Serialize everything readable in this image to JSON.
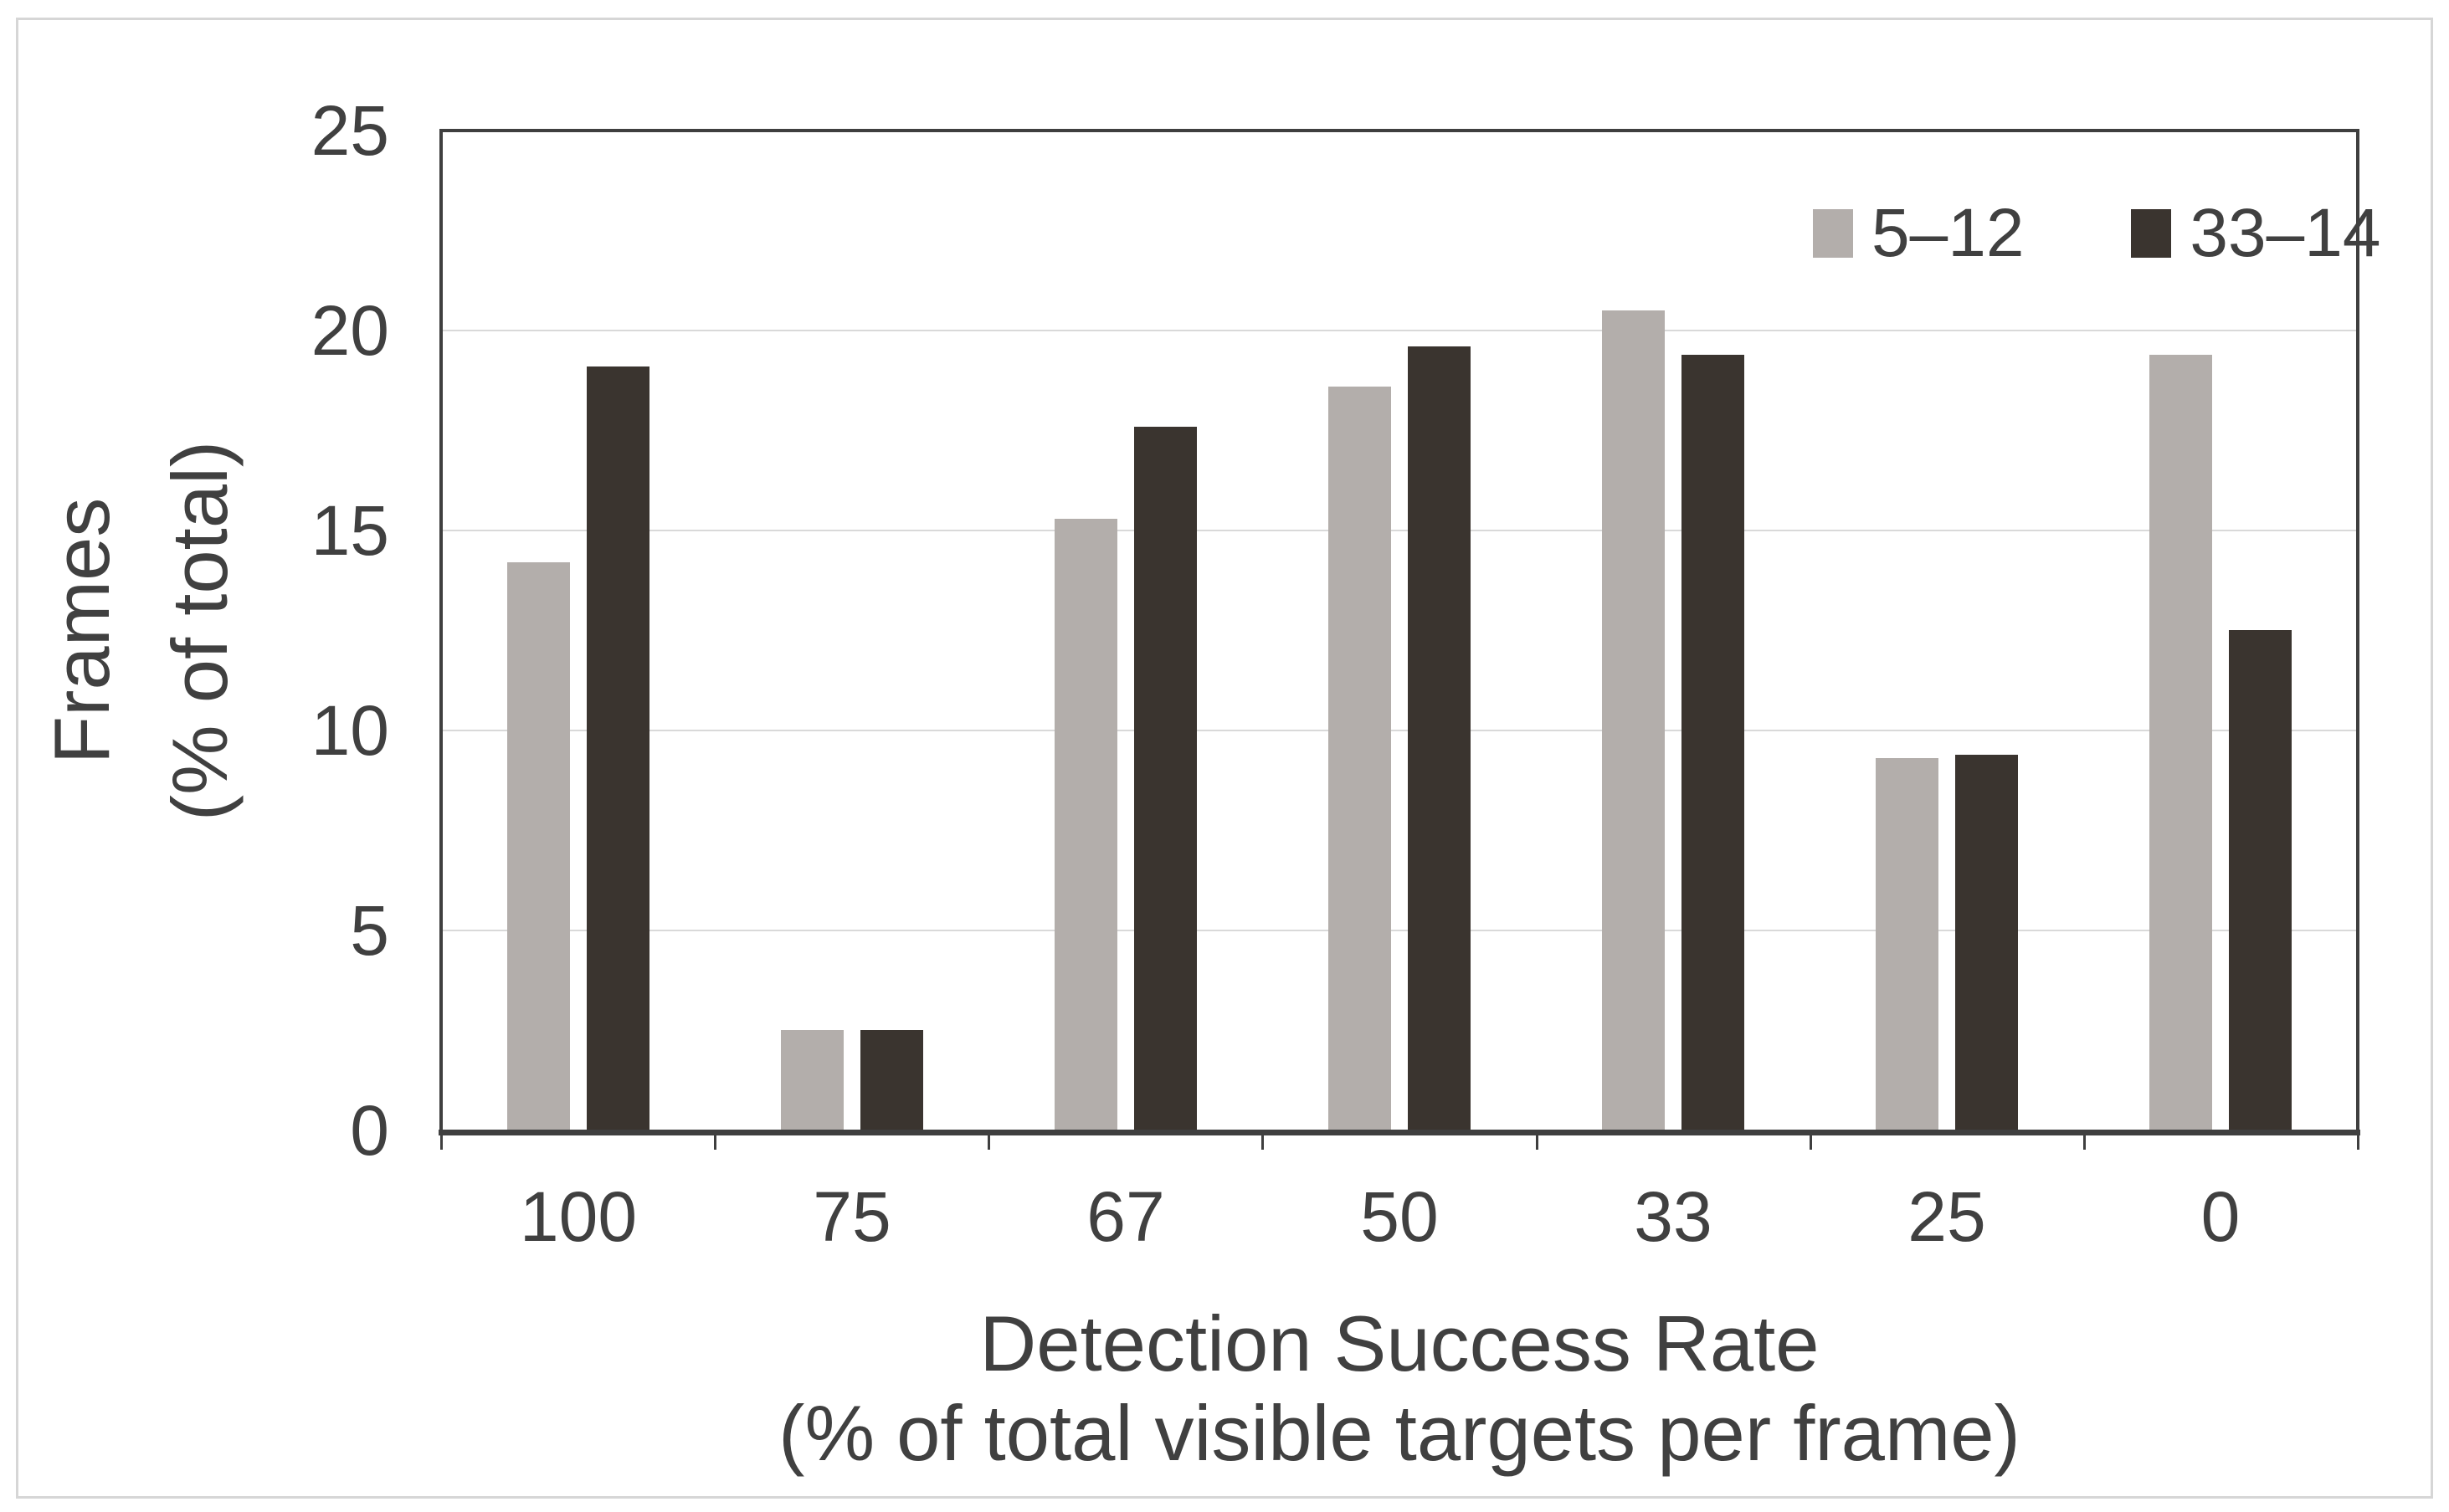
{
  "figure": {
    "background": "#ffffff",
    "outer_border_color": "#d6d6d6"
  },
  "chart_data": {
    "type": "bar",
    "title": "",
    "categories": [
      "100",
      "75",
      "67",
      "50",
      "33",
      "25",
      "0"
    ],
    "series": [
      {
        "name": "5–12",
        "color": "#b3aeab",
        "values": [
          14.2,
          2.5,
          15.3,
          18.6,
          20.5,
          9.3,
          19.4
        ]
      },
      {
        "name": "33–14",
        "color": "#3a342f",
        "values": [
          19.1,
          2.5,
          17.6,
          19.6,
          19.4,
          9.4,
          12.5
        ]
      }
    ],
    "xlabel_line1": "Detection Success Rate",
    "xlabel_line2": "(% of total visible targets per frame)",
    "ylabel_line1": "Frames",
    "ylabel_line2": "(% of total)",
    "ylim": [
      0,
      25
    ],
    "yticks": [
      0,
      5,
      10,
      15,
      20,
      25
    ],
    "grid": true,
    "legend_position": "top-right",
    "axis_color": "#3f3f3f",
    "gridline_color": "#d9d9d9",
    "text_color": "#404040"
  }
}
